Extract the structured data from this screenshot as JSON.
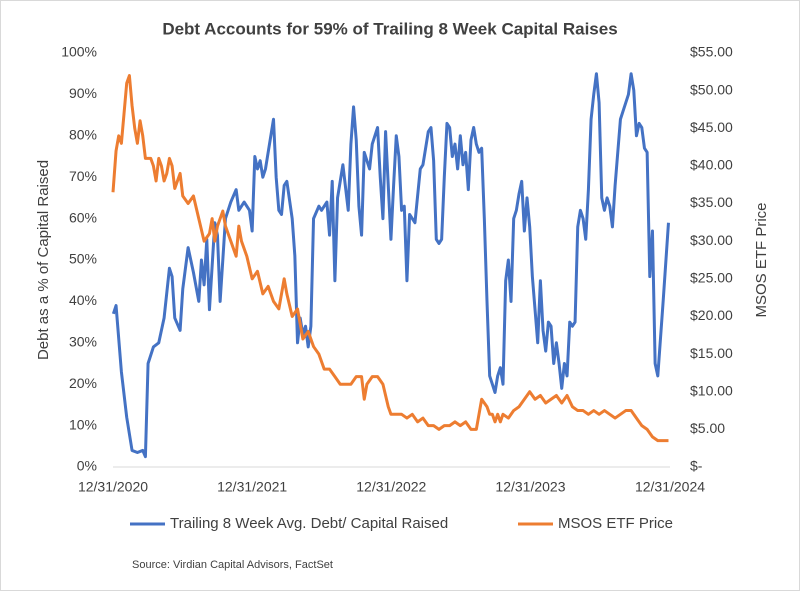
{
  "chart_data": {
    "type": "line",
    "title": "Debt Accounts for 59% of Trailing 8 Week Capital Raises",
    "y_label": "Debt as a % of Capital Raised",
    "y2_label": "MSOS ETF Price",
    "source": "Source: Virdian Capital Advisors, FactSet",
    "xlim": [
      "12/31/2020",
      "12/31/2024"
    ],
    "xticks": [
      "12/31/2020",
      "12/31/2021",
      "12/31/2022",
      "12/31/2023",
      "12/31/2024"
    ],
    "ylim": [
      0,
      100
    ],
    "yticks": [
      {
        "value": 0,
        "label": "0%"
      },
      {
        "value": 10,
        "label": "10%"
      },
      {
        "value": 20,
        "label": "20%"
      },
      {
        "value": 30,
        "label": "30%"
      },
      {
        "value": 40,
        "label": "40%"
      },
      {
        "value": 50,
        "label": "50%"
      },
      {
        "value": 60,
        "label": "60%"
      },
      {
        "value": 70,
        "label": "70%"
      },
      {
        "value": 80,
        "label": "80%"
      },
      {
        "value": 90,
        "label": "90%"
      },
      {
        "value": 100,
        "label": "100%"
      }
    ],
    "y2lim": [
      0,
      55
    ],
    "y2ticks": [
      {
        "value": 0,
        "label": "$-"
      },
      {
        "value": 5,
        "label": "$5.00"
      },
      {
        "value": 10,
        "label": "$10.00"
      },
      {
        "value": 15,
        "label": "$15.00"
      },
      {
        "value": 20,
        "label": "$20.00"
      },
      {
        "value": 25,
        "label": "$25.00"
      },
      {
        "value": 30,
        "label": "$30.00"
      },
      {
        "value": 35,
        "label": "$35.00"
      },
      {
        "value": 40,
        "label": "$40.00"
      },
      {
        "value": 45,
        "label": "$45.00"
      },
      {
        "value": 50,
        "label": "$50.00"
      },
      {
        "value": 55,
        "label": "$55.00"
      }
    ],
    "legend": "bottom",
    "series": [
      {
        "name": "Trailing 8 Week Avg. Debt/ Capital Raised",
        "color": "#4472c4",
        "axis": "y",
        "x": [
          "1/1/2021",
          "1/8/2021",
          "1/22/2021",
          "2/5/2021",
          "2/19/2021",
          "3/5/2021",
          "3/19/2021",
          "3/26/2021",
          "4/2/2021",
          "4/16/2021",
          "4/30/2021",
          "5/14/2021",
          "5/28/2021",
          "6/4/2021",
          "6/11/2021",
          "6/25/2021",
          "7/2/2021",
          "7/16/2021",
          "7/30/2021",
          "8/13/2021",
          "8/20/2021",
          "8/27/2021",
          "9/3/2021",
          "9/10/2021",
          "9/24/2021",
          "10/1/2021",
          "10/8/2021",
          "10/22/2021",
          "11/5/2021",
          "11/19/2021",
          "11/26/2021",
          "12/10/2021",
          "12/24/2021",
          "12/31/2021",
          "1/7/2022",
          "1/14/2022",
          "1/21/2022",
          "1/28/2022",
          "2/4/2022",
          "2/18/2022",
          "2/25/2022",
          "3/4/2022",
          "3/11/2022",
          "3/18/2022",
          "3/25/2022",
          "4/1/2022",
          "4/15/2022",
          "4/22/2022",
          "4/29/2022",
          "5/6/2022",
          "5/13/2022",
          "5/20/2022",
          "5/27/2022",
          "6/3/2022",
          "6/10/2022",
          "6/24/2022",
          "7/1/2022",
          "7/15/2022",
          "7/22/2022",
          "7/29/2022",
          "8/5/2022",
          "8/12/2022",
          "8/26/2022",
          "9/9/2022",
          "9/16/2022",
          "9/23/2022",
          "9/30/2022",
          "10/7/2022",
          "10/14/2022",
          "10/21/2022",
          "11/4/2022",
          "11/11/2022",
          "11/25/2022",
          "12/2/2022",
          "12/9/2022",
          "12/16/2022",
          "12/30/2022",
          "1/6/2023",
          "1/13/2023",
          "1/20/2023",
          "1/27/2023",
          "2/3/2023",
          "2/10/2023",
          "2/17/2023",
          "3/3/2023",
          "3/17/2023",
          "3/24/2023",
          "4/7/2023",
          "4/14/2023",
          "4/21/2023",
          "4/28/2023",
          "5/5/2023",
          "5/12/2023",
          "5/19/2023",
          "5/26/2023",
          "6/2/2023",
          "6/9/2023",
          "6/16/2023",
          "6/23/2023",
          "6/30/2023",
          "7/7/2023",
          "7/14/2023",
          "7/21/2023",
          "7/28/2023",
          "8/4/2023",
          "8/11/2023",
          "8/18/2023",
          "8/25/2023",
          "9/1/2023",
          "9/8/2023",
          "9/15/2023",
          "9/22/2023",
          "9/29/2023",
          "10/6/2023",
          "10/13/2023",
          "10/20/2023",
          "10/27/2023",
          "11/3/2023",
          "11/10/2023",
          "11/17/2023",
          "11/24/2023",
          "12/1/2023",
          "12/8/2023",
          "12/15/2023",
          "12/22/2023",
          "12/29/2023",
          "1/5/2024",
          "1/12/2024",
          "1/19/2024",
          "1/26/2024",
          "2/2/2024",
          "2/9/2024",
          "2/16/2024",
          "2/23/2024",
          "3/1/2024",
          "3/8/2024",
          "3/15/2024",
          "3/22/2024",
          "3/29/2024",
          "4/5/2024",
          "4/12/2024",
          "4/19/2024",
          "4/26/2024",
          "5/3/2024",
          "5/10/2024",
          "5/17/2024",
          "5/24/2024",
          "5/31/2024",
          "6/7/2024",
          "6/14/2024",
          "6/21/2024",
          "6/28/2024",
          "7/5/2024",
          "7/12/2024",
          "7/19/2024",
          "7/26/2024",
          "8/2/2024",
          "8/9/2024",
          "8/16/2024",
          "8/23/2024",
          "8/30/2024",
          "9/6/2024",
          "9/13/2024",
          "9/20/2024",
          "9/27/2024",
          "10/4/2024",
          "10/11/2024",
          "10/18/2024",
          "10/25/2024",
          "11/1/2024",
          "11/8/2024",
          "11/15/2024",
          "11/22/2024",
          "11/29/2024",
          "12/13/2024",
          "12/27/2024"
        ],
        "values": [
          37,
          39,
          23,
          12,
          4,
          3.5,
          4,
          2.5,
          25,
          29,
          30,
          36,
          48,
          46,
          36,
          33,
          43,
          53,
          47,
          40,
          50,
          44,
          55,
          38,
          59,
          56,
          40,
          60,
          64,
          67,
          62,
          64,
          62,
          57,
          75,
          72,
          74,
          70,
          72,
          80,
          84,
          70,
          62,
          61,
          68,
          69,
          60,
          51,
          30,
          36,
          32,
          34,
          29,
          34,
          60,
          63,
          62,
          64,
          56,
          69,
          45,
          65,
          73,
          62,
          78,
          87,
          79,
          63,
          56,
          76,
          72,
          78,
          82,
          70,
          60,
          81,
          55,
          68,
          80,
          75,
          62,
          63,
          45,
          61,
          59,
          72,
          73,
          81,
          82,
          74,
          55,
          54,
          55,
          70,
          83,
          82,
          75,
          78,
          72,
          80,
          73,
          76,
          67,
          79,
          82,
          78,
          76,
          77,
          60,
          40,
          22,
          20,
          18,
          22,
          24,
          20,
          45,
          50,
          40,
          60,
          62,
          66,
          69,
          57,
          65,
          58,
          46,
          38,
          30,
          45,
          33,
          28,
          35,
          34,
          25,
          30,
          25,
          19,
          25,
          22,
          35,
          34,
          35,
          58,
          62,
          60,
          55,
          67,
          84,
          90,
          95,
          88,
          65,
          62,
          65,
          63,
          58,
          68,
          76,
          84,
          86,
          88,
          90,
          95,
          91,
          80,
          83,
          82,
          77,
          76,
          46,
          57,
          25,
          22,
          40,
          59
        ]
      },
      {
        "name": "MSOS ETF Price",
        "color": "#ed7d31",
        "axis": "y2",
        "x": [
          "12/31/2020",
          "1/8/2021",
          "1/15/2021",
          "1/22/2021",
          "1/29/2021",
          "2/5/2021",
          "2/12/2021",
          "2/19/2021",
          "2/26/2021",
          "3/5/2021",
          "3/12/2021",
          "3/19/2021",
          "3/26/2021",
          "4/9/2021",
          "4/16/2021",
          "4/23/2021",
          "4/30/2021",
          "5/7/2021",
          "5/14/2021",
          "5/21/2021",
          "5/28/2021",
          "6/4/2021",
          "6/11/2021",
          "6/25/2021",
          "7/2/2021",
          "7/16/2021",
          "7/30/2021",
          "8/13/2021",
          "8/27/2021",
          "9/10/2021",
          "9/17/2021",
          "9/24/2021",
          "10/1/2021",
          "10/15/2021",
          "10/22/2021",
          "10/29/2021",
          "11/5/2021",
          "11/19/2021",
          "11/26/2021",
          "12/3/2021",
          "12/17/2021",
          "12/31/2021",
          "1/14/2022",
          "1/28/2022",
          "2/11/2022",
          "2/25/2022",
          "3/11/2022",
          "3/25/2022",
          "4/1/2022",
          "4/15/2022",
          "4/29/2022",
          "5/13/2022",
          "5/27/2022",
          "6/10/2022",
          "6/24/2022",
          "7/8/2022",
          "7/22/2022",
          "8/5/2022",
          "8/19/2022",
          "9/2/2022",
          "9/16/2022",
          "9/30/2022",
          "10/7/2022",
          "10/14/2022",
          "10/21/2022",
          "10/28/2022",
          "11/11/2022",
          "11/25/2022",
          "12/9/2022",
          "12/23/2022",
          "12/30/2022",
          "1/13/2023",
          "1/27/2023",
          "2/10/2023",
          "2/24/2023",
          "3/10/2023",
          "3/24/2023",
          "4/7/2023",
          "4/21/2023",
          "5/5/2023",
          "5/19/2023",
          "6/2/2023",
          "6/16/2023",
          "6/30/2023",
          "7/14/2023",
          "7/28/2023",
          "8/11/2023",
          "8/18/2023",
          "8/25/2023",
          "9/1/2023",
          "9/8/2023",
          "9/15/2023",
          "9/22/2023",
          "9/29/2023",
          "10/6/2023",
          "10/13/2023",
          "10/20/2023",
          "11/3/2023",
          "11/17/2023",
          "12/1/2023",
          "12/15/2023",
          "12/29/2023",
          "1/12/2024",
          "1/26/2024",
          "2/9/2024",
          "2/23/2024",
          "3/8/2024",
          "3/22/2024",
          "4/5/2024",
          "4/19/2024",
          "5/3/2024",
          "5/17/2024",
          "5/31/2024",
          "6/14/2024",
          "6/28/2024",
          "7/12/2024",
          "7/26/2024",
          "8/9/2024",
          "8/23/2024",
          "9/6/2024",
          "9/20/2024",
          "10/4/2024",
          "10/18/2024",
          "11/1/2024",
          "11/15/2024",
          "11/29/2024",
          "12/13/2024",
          "12/27/2024"
        ],
        "values": [
          36.5,
          42,
          44,
          43,
          47,
          51,
          52,
          48,
          45,
          43,
          46,
          44,
          41,
          41,
          40,
          38,
          41,
          40,
          38,
          39,
          41,
          40,
          37,
          39,
          36,
          35,
          36,
          33,
          30,
          31,
          33,
          30,
          32,
          34,
          32,
          31,
          30,
          28,
          32,
          30,
          28,
          25,
          26,
          23,
          24,
          22,
          21,
          25,
          23,
          20,
          21,
          17,
          18,
          16,
          15,
          13,
          13,
          12,
          11,
          11,
          11,
          12,
          12,
          12,
          9,
          11,
          12,
          12,
          11,
          8,
          7,
          7,
          7,
          6.5,
          7,
          6,
          6.5,
          5.5,
          5.5,
          5,
          5.5,
          5.5,
          6,
          5.5,
          6,
          5,
          5,
          7,
          9,
          8.5,
          8,
          7,
          7,
          6,
          7,
          6,
          7,
          6.5,
          7.5,
          8,
          9,
          10,
          9,
          9.5,
          8.5,
          9,
          9.5,
          8.5,
          9.5,
          8,
          7.5,
          7.5,
          7,
          7.5,
          7,
          7.5,
          7,
          6.5,
          7,
          7.5,
          7.5,
          6.5,
          5.5,
          5,
          4,
          3.5,
          3.5,
          3.5
        ]
      }
    ]
  }
}
